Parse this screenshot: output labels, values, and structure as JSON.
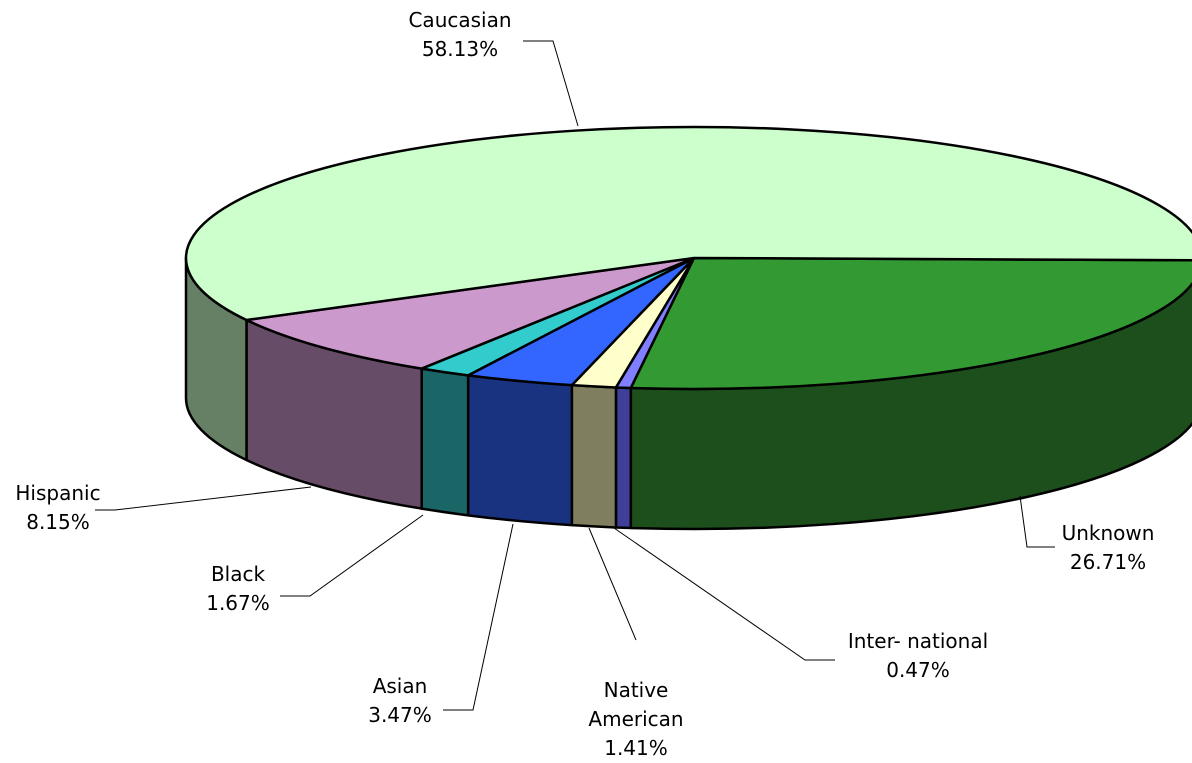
{
  "chart_data": {
    "type": "pie",
    "title": "",
    "three_d": true,
    "slices": [
      {
        "label": "Unknown",
        "label_lines": [
          "Unknown"
        ],
        "value": 26.71,
        "display": "26.71%",
        "top_color": "#339933",
        "side_color": "#1c4f1c"
      },
      {
        "label": "Inter- national",
        "label_lines": [
          "Inter- national"
        ],
        "value": 0.47,
        "display": "0.47%",
        "top_color": "#7f7fff",
        "side_color": "#3f3f99"
      },
      {
        "label": "Native American",
        "label_lines": [
          "Native",
          "American"
        ],
        "value": 1.41,
        "display": "1.41%",
        "top_color": "#ffffcc",
        "side_color": "#7f7f5f"
      },
      {
        "label": "Asian",
        "label_lines": [
          "Asian"
        ],
        "value": 3.47,
        "display": "3.47%",
        "top_color": "#3366ff",
        "side_color": "#1a3380"
      },
      {
        "label": "Black",
        "label_lines": [
          "Black"
        ],
        "value": 1.67,
        "display": "1.67%",
        "top_color": "#33cccc",
        "side_color": "#1a6666"
      },
      {
        "label": "Hispanic",
        "label_lines": [
          "Hispanic"
        ],
        "value": 8.15,
        "display": "8.15%",
        "top_color": "#cc99cc",
        "side_color": "#664c66"
      },
      {
        "label": "Caucasian",
        "label_lines": [
          "Caucasian"
        ],
        "value": 58.13,
        "display": "58.13%",
        "top_color": "#ccffcc",
        "side_color": "#668066"
      }
    ]
  }
}
